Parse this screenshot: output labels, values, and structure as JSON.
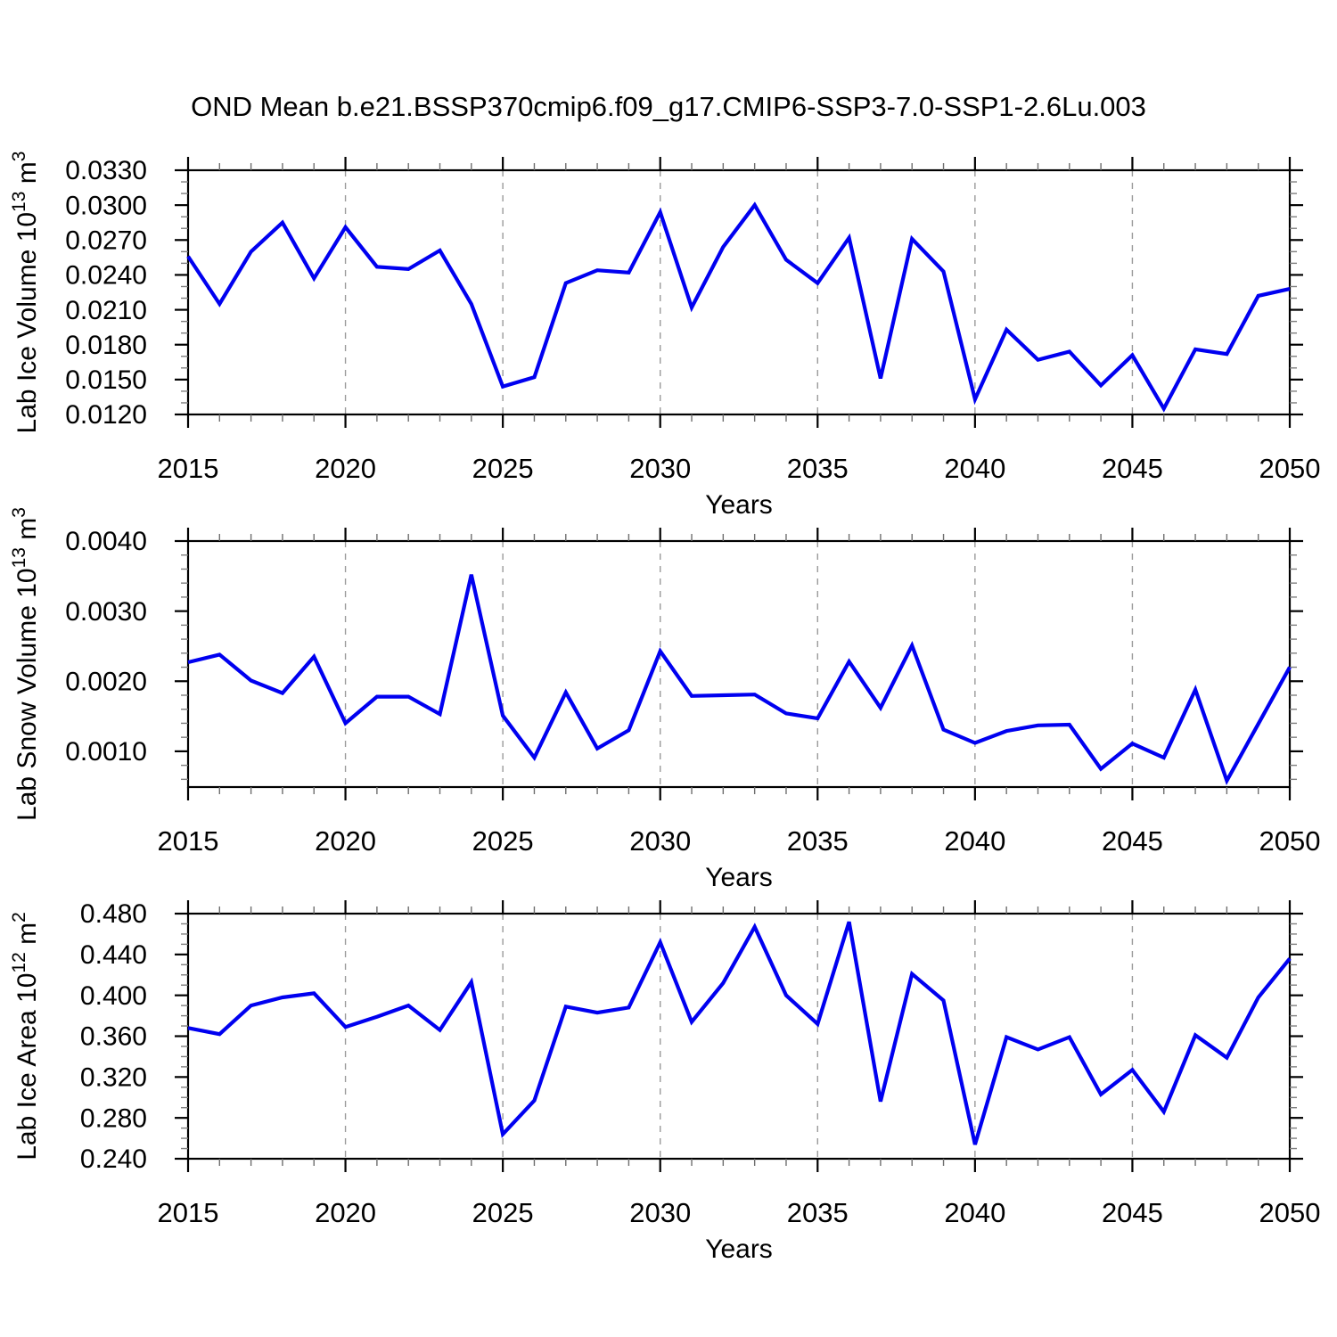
{
  "title": "OND Mean b.e21.BSSP370cmip6.f09_g17.CMIP6-SSP3-7.0-SSP1-2.6Lu.003",
  "line_color": "#0000f0",
  "grid_color": "#9a9a9a",
  "chart_data": [
    {
      "type": "line",
      "name": "lab-ice-volume",
      "ylabel_parts": [
        {
          "t": "Lab Ice Volume 10",
          "sup": false
        },
        {
          "t": "13",
          "sup": true
        },
        {
          "t": " m",
          "sup": false
        },
        {
          "t": "3",
          "sup": true
        }
      ],
      "xlabel": "Years",
      "x": [
        2015,
        2016,
        2017,
        2018,
        2019,
        2020,
        2021,
        2022,
        2023,
        2024,
        2025,
        2026,
        2027,
        2028,
        2029,
        2030,
        2031,
        2032,
        2033,
        2034,
        2035,
        2036,
        2037,
        2038,
        2039,
        2040,
        2041,
        2042,
        2043,
        2044,
        2045,
        2046,
        2047,
        2048,
        2049,
        2050
      ],
      "values": [
        0.0256,
        0.0215,
        0.026,
        0.0285,
        0.0237,
        0.0281,
        0.0247,
        0.0245,
        0.0261,
        0.0215,
        0.0144,
        0.0152,
        0.0233,
        0.0244,
        0.0242,
        0.0294,
        0.0212,
        0.0264,
        0.03,
        0.0253,
        0.0233,
        0.0272,
        0.0151,
        0.0271,
        0.0243,
        0.0133,
        0.0193,
        0.0167,
        0.0174,
        0.0145,
        0.0171,
        0.0125,
        0.0176,
        0.0172,
        0.0222,
        0.0228
      ],
      "ylim": [
        0.012,
        0.033
      ],
      "ytick_values": [
        0.012,
        0.015,
        0.018,
        0.021,
        0.024,
        0.027,
        0.03,
        0.033
      ],
      "ytick_labels": [
        "0.0120",
        "0.0150",
        "0.0180",
        "0.0210",
        "0.0240",
        "0.0270",
        "0.0300",
        "0.0330"
      ],
      "y_minor_step": 0.001,
      "xtick_values": [
        2015,
        2020,
        2025,
        2030,
        2035,
        2040,
        2045,
        2050
      ],
      "xtick_labels": [
        "2015",
        "2020",
        "2025",
        "2030",
        "2035",
        "2040",
        "2045",
        "2050"
      ],
      "x_minor_step": 1,
      "grid_x": [
        2020,
        2025,
        2030,
        2035,
        2040,
        2045
      ]
    },
    {
      "type": "line",
      "name": "lab-snow-volume",
      "ylabel_parts": [
        {
          "t": "Lab Snow Volume 10",
          "sup": false
        },
        {
          "t": "13",
          "sup": true
        },
        {
          "t": " m",
          "sup": false
        },
        {
          "t": "3",
          "sup": true
        }
      ],
      "xlabel": "Years",
      "x": [
        2015,
        2016,
        2017,
        2018,
        2019,
        2020,
        2021,
        2022,
        2023,
        2024,
        2025,
        2026,
        2027,
        2028,
        2029,
        2030,
        2031,
        2032,
        2033,
        2034,
        2035,
        2036,
        2037,
        2038,
        2039,
        2040,
        2041,
        2042,
        2043,
        2044,
        2045,
        2046,
        2047,
        2048,
        2049,
        2050
      ],
      "values": [
        0.00227,
        0.00238,
        0.00201,
        0.00183,
        0.00235,
        0.0014,
        0.00178,
        0.00178,
        0.00153,
        0.00352,
        0.00151,
        0.00091,
        0.00184,
        0.00104,
        0.0013,
        0.00243,
        0.00179,
        0.0018,
        0.00181,
        0.00154,
        0.00147,
        0.00228,
        0.00162,
        0.00251,
        0.00131,
        0.00112,
        0.00129,
        0.00137,
        0.00138,
        0.00075,
        0.00111,
        0.00091,
        0.00188,
        0.00058,
        0.00139,
        0.0022
      ],
      "ylim": [
        0.00049,
        0.004
      ],
      "ytick_values": [
        0.001,
        0.002,
        0.003,
        0.004
      ],
      "ytick_labels": [
        "0.0010",
        "0.0020",
        "0.0030",
        "0.0040"
      ],
      "y_minor_step": 0.0002,
      "xtick_values": [
        2015,
        2020,
        2025,
        2030,
        2035,
        2040,
        2045,
        2050
      ],
      "xtick_labels": [
        "2015",
        "2020",
        "2025",
        "2030",
        "2035",
        "2040",
        "2045",
        "2050"
      ],
      "x_minor_step": 1,
      "grid_x": [
        2020,
        2025,
        2030,
        2035,
        2040,
        2045
      ]
    },
    {
      "type": "line",
      "name": "lab-ice-area",
      "ylabel_parts": [
        {
          "t": "Lab Ice Area 10",
          "sup": false
        },
        {
          "t": "12",
          "sup": true
        },
        {
          "t": " m",
          "sup": false
        },
        {
          "t": "2",
          "sup": true
        }
      ],
      "xlabel": "Years",
      "x": [
        2015,
        2016,
        2017,
        2018,
        2019,
        2020,
        2021,
        2022,
        2023,
        2024,
        2025,
        2026,
        2027,
        2028,
        2029,
        2030,
        2031,
        2032,
        2033,
        2034,
        2035,
        2036,
        2037,
        2038,
        2039,
        2040,
        2041,
        2042,
        2043,
        2044,
        2045,
        2046,
        2047,
        2048,
        2049,
        2050
      ],
      "values": [
        0.368,
        0.362,
        0.39,
        0.398,
        0.402,
        0.369,
        0.379,
        0.39,
        0.366,
        0.413,
        0.264,
        0.297,
        0.389,
        0.383,
        0.388,
        0.452,
        0.374,
        0.412,
        0.467,
        0.4,
        0.372,
        0.472,
        0.296,
        0.421,
        0.395,
        0.254,
        0.359,
        0.347,
        0.359,
        0.303,
        0.327,
        0.286,
        0.361,
        0.339,
        0.398,
        0.436
      ],
      "ylim": [
        0.24,
        0.48
      ],
      "ytick_values": [
        0.24,
        0.28,
        0.32,
        0.36,
        0.4,
        0.44,
        0.48
      ],
      "ytick_labels": [
        "0.240",
        "0.280",
        "0.320",
        "0.360",
        "0.400",
        "0.440",
        "0.480"
      ],
      "y_minor_step": 0.01,
      "xtick_values": [
        2015,
        2020,
        2025,
        2030,
        2035,
        2040,
        2045,
        2050
      ],
      "xtick_labels": [
        "2015",
        "2020",
        "2025",
        "2030",
        "2035",
        "2040",
        "2045",
        "2050"
      ],
      "x_minor_step": 1,
      "grid_x": [
        2020,
        2025,
        2030,
        2035,
        2040,
        2045
      ]
    }
  ]
}
